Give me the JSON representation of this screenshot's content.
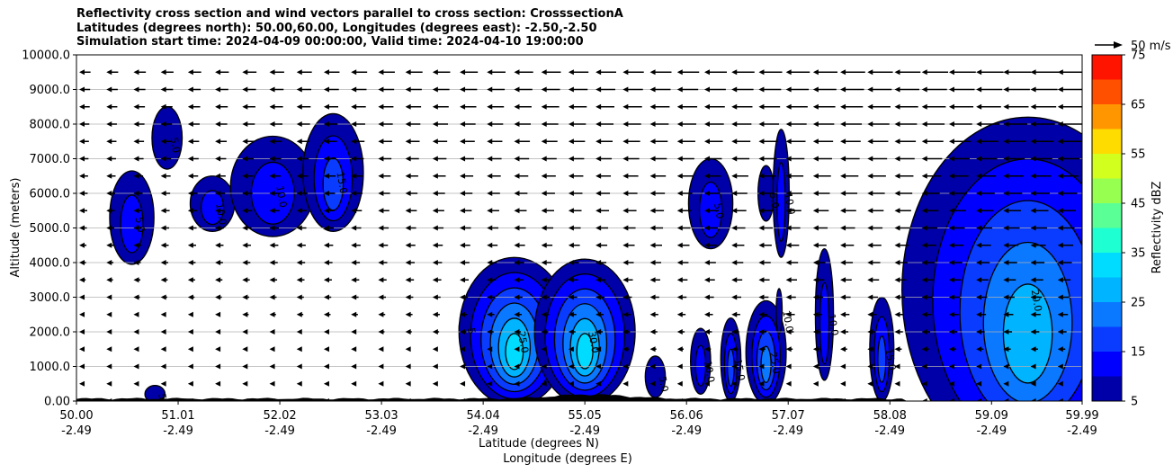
{
  "title": {
    "line1": "Reflectivity cross section and wind vectors parallel to cross section: CrosssectionA",
    "line2": "Latitudes (degrees north): 50.00,60.00, Longitudes (degrees east): -2.50,-2.50",
    "line3": "Simulation start time: 2024-04-09 00:00:00, Valid time: 2024-04-10 19:00:00"
  },
  "chart_data": {
    "type": "contourf",
    "ylabel": "Altitude (meters)",
    "xlabel_line1": "Latitude (degrees N)",
    "xlabel_line2": "Longitude (degrees E)",
    "ylim": [
      0,
      10000
    ],
    "xlim": [
      50.0,
      59.99
    ],
    "y_ticks": [
      0,
      1000,
      2000,
      3000,
      4000,
      5000,
      6000,
      7000,
      8000,
      9000,
      10000
    ],
    "y_tick_labels": [
      "0.00",
      "1000.0",
      "2000.0",
      "3000.0",
      "4000.0",
      "5000.0",
      "6000.0",
      "7000.0",
      "8000.0",
      "9000.0",
      "10000.0"
    ],
    "x_ticks": [
      50.0,
      51.01,
      52.02,
      53.03,
      54.04,
      55.05,
      56.06,
      57.07,
      58.08,
      59.09,
      59.99
    ],
    "x_tick_labels_lat": [
      "50.00",
      "51.01",
      "52.02",
      "53.03",
      "54.04",
      "55.05",
      "56.06",
      "57.07",
      "58.08",
      "59.09",
      "59.99"
    ],
    "x_tick_labels_lon": [
      "-2.49",
      "-2.49",
      "-2.49",
      "-2.49",
      "-2.49",
      "-2.49",
      "-2.49",
      "-2.49",
      "-2.49",
      "-2.49",
      "-2.49"
    ],
    "grid": "horizontal",
    "colorbar": {
      "label": "Reflectivity dBZ",
      "levels": [
        5,
        10,
        15,
        20,
        25,
        30,
        35,
        40,
        45,
        50,
        55,
        60,
        65,
        70,
        75
      ],
      "tick_labels": [
        "5",
        "15",
        "25",
        "35",
        "45",
        "55",
        "65",
        "75"
      ],
      "colors": [
        "#0000a8",
        "#0000ff",
        "#0a3cff",
        "#0a78ff",
        "#00b4ff",
        "#00dcff",
        "#1effd2",
        "#5aff96",
        "#96ff50",
        "#d2ff1e",
        "#ffdc00",
        "#ff9600",
        "#ff5000",
        "#ff1400",
        "#a00000"
      ]
    },
    "wind_key": {
      "label": "50 m/s",
      "value": 50
    },
    "cells": [
      {
        "x": 50.55,
        "y": 5300,
        "w": 0.22,
        "h": 2700,
        "peak": 10,
        "label": "5.0"
      },
      {
        "x": 50.9,
        "y": 7600,
        "w": 0.15,
        "h": 1800,
        "peak": 8,
        "label": "5.0"
      },
      {
        "x": 51.35,
        "y": 5700,
        "w": 0.22,
        "h": 1600,
        "peak": 10,
        "label": "10.0"
      },
      {
        "x": 51.95,
        "y": 6200,
        "w": 0.42,
        "h": 2900,
        "peak": 14,
        "label": "10.0"
      },
      {
        "x": 52.55,
        "y": 6600,
        "w": 0.3,
        "h": 3400,
        "peak": 15,
        "label": "15.0"
      },
      {
        "x": 53.85,
        "y": 2100,
        "w": 0.05,
        "h": 700,
        "peak": 8,
        "label": "5"
      },
      {
        "x": 54.35,
        "y": 2000,
        "w": 0.55,
        "h": 4300,
        "peak": 30,
        "label": "25.0"
      },
      {
        "x": 55.05,
        "y": 2000,
        "w": 0.5,
        "h": 4200,
        "peak": 33,
        "label": "30.0"
      },
      {
        "x": 55.75,
        "y": 700,
        "w": 0.1,
        "h": 1200,
        "peak": 9,
        "label": "5.0"
      },
      {
        "x": 56.2,
        "y": 1150,
        "w": 0.1,
        "h": 1900,
        "peak": 12,
        "label": "10.0"
      },
      {
        "x": 56.5,
        "y": 1200,
        "w": 0.1,
        "h": 2400,
        "peak": 15,
        "label": "15.0"
      },
      {
        "x": 56.85,
        "y": 1400,
        "w": 0.2,
        "h": 3000,
        "peak": 22,
        "label": "25.0"
      },
      {
        "x": 56.3,
        "y": 5700,
        "w": 0.22,
        "h": 2600,
        "peak": 11,
        "label": "5.0"
      },
      {
        "x": 56.85,
        "y": 6000,
        "w": 0.08,
        "h": 1600,
        "peak": 9,
        "label": "5.0"
      },
      {
        "x": 57.0,
        "y": 6000,
        "w": 0.08,
        "h": 3700,
        "peak": 10,
        "label": "10.0"
      },
      {
        "x": 56.98,
        "y": 2600,
        "w": 0.03,
        "h": 1300,
        "peak": 8,
        "label": "10.0"
      },
      {
        "x": 57.43,
        "y": 2500,
        "w": 0.09,
        "h": 3800,
        "peak": 11,
        "label": "10.0"
      },
      {
        "x": 58.0,
        "y": 1500,
        "w": 0.12,
        "h": 3000,
        "peak": 17,
        "label": "15.0"
      },
      {
        "x": 59.45,
        "y": 3200,
        "w": 1.25,
        "h": 10000,
        "peak": 26,
        "label": "20.0"
      },
      {
        "x": 50.78,
        "y": 200,
        "w": 0.1,
        "h": 500,
        "peak": 8,
        "label": "5.0"
      }
    ]
  }
}
